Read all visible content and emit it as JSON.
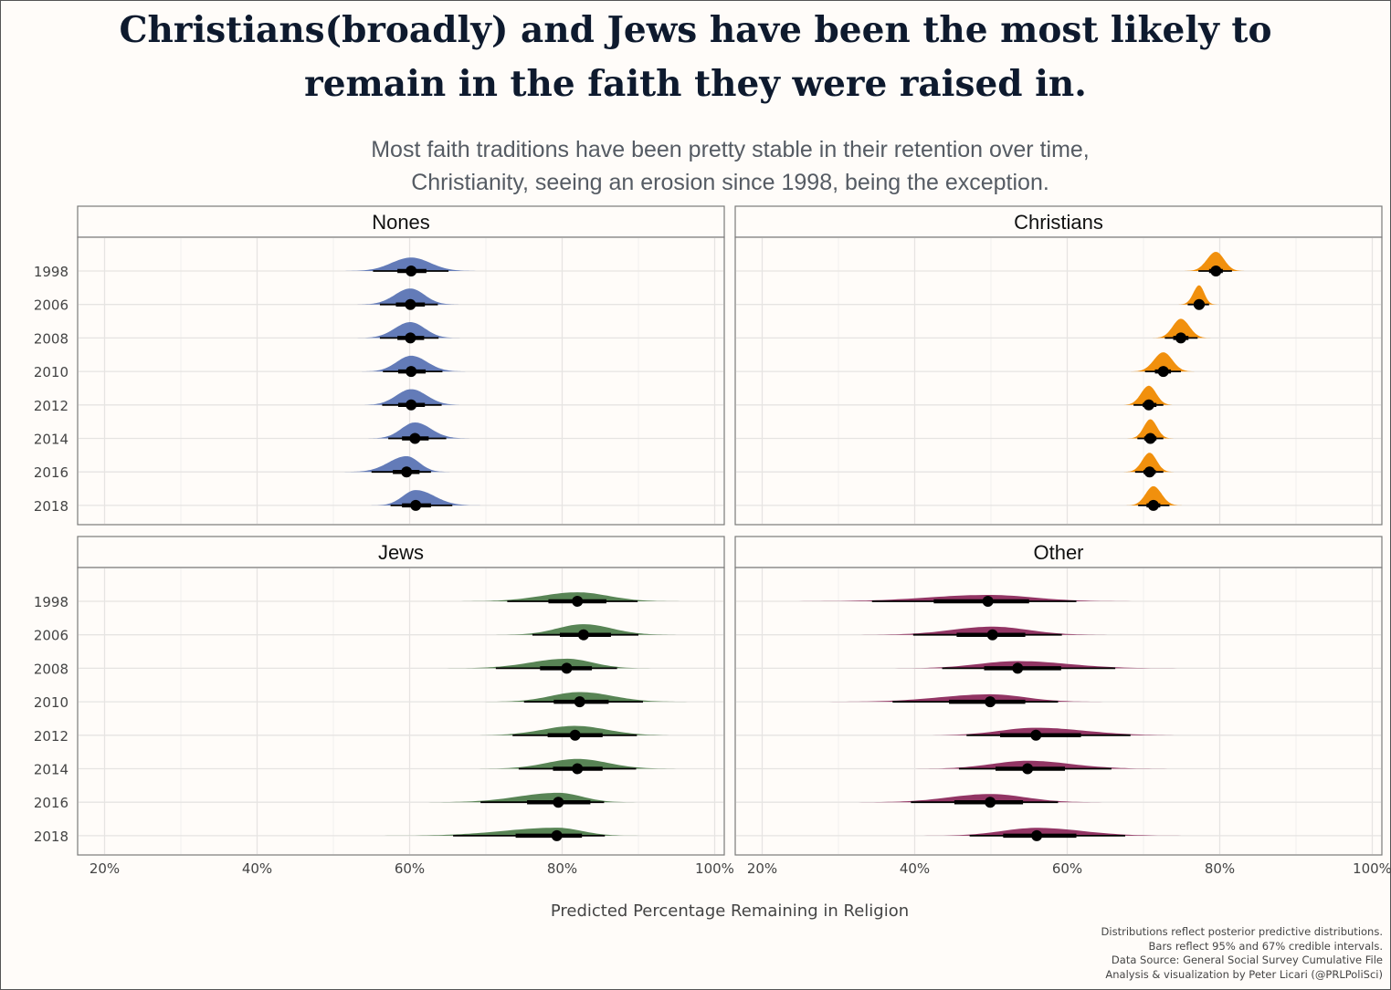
{
  "title_lines": [
    "Christians(broadly) and Jews have been the most likely to",
    "remain in the faith they were raised in."
  ],
  "subtitle_lines": [
    "Most faith traditions have been pretty stable in their retention over time,",
    "Christianity, seeing an erosion since 1998, being the exception."
  ],
  "caption_lines": [
    "Distributions reflect posterior predictive distributions.",
    "Bars reflect 95% and 67% credible intervals.",
    "Data Source: General Social Survey Cumulative File",
    "Analysis & visualization by Peter Licari (@PRLPoliSci)"
  ],
  "colors": {
    "Nones": "#5b74b4",
    "Christians": "#f08a00",
    "Jews": "#4f7d4c",
    "Other": "#8c2a5c"
  },
  "chart_data": {
    "type": "halfeye",
    "xlabel": "Predicted Percentage Remaining in Religion",
    "ylabel": "",
    "xlim": [
      20,
      100
    ],
    "x_ticks": [
      20,
      40,
      60,
      80,
      100
    ],
    "x_tick_labels": [
      "20%",
      "40%",
      "60%",
      "80%",
      "100%"
    ],
    "grid": true,
    "legend": "none",
    "categories": [
      "1998",
      "2006",
      "2008",
      "2010",
      "2012",
      "2014",
      "2016",
      "2018"
    ],
    "series": [
      {
        "name": "Nones",
        "points": [
          {
            "year": "1998",
            "median": 60.2,
            "ci67": [
              58.4,
              62.2
            ],
            "ci95": [
              55.2,
              65.1
            ]
          },
          {
            "year": "2006",
            "median": 60.1,
            "ci67": [
              58.2,
              62.0
            ],
            "ci95": [
              56.1,
              63.7
            ]
          },
          {
            "year": "2008",
            "median": 60.1,
            "ci67": [
              58.4,
              61.9
            ],
            "ci95": [
              56.1,
              63.8
            ]
          },
          {
            "year": "2010",
            "median": 60.2,
            "ci67": [
              58.5,
              62.1
            ],
            "ci95": [
              56.5,
              64.3
            ]
          },
          {
            "year": "2012",
            "median": 60.2,
            "ci67": [
              58.5,
              62.0
            ],
            "ci95": [
              56.4,
              64.2
            ]
          },
          {
            "year": "2014",
            "median": 60.7,
            "ci67": [
              59.0,
              62.5
            ],
            "ci95": [
              57.2,
              64.8
            ]
          },
          {
            "year": "2016",
            "median": 59.6,
            "ci67": [
              57.8,
              61.3
            ],
            "ci95": [
              55.0,
              62.8
            ]
          },
          {
            "year": "2018",
            "median": 60.8,
            "ci67": [
              59.0,
              62.8
            ],
            "ci95": [
              57.5,
              65.6
            ]
          }
        ]
      },
      {
        "name": "Christians",
        "points": [
          {
            "year": "1998",
            "median": 79.5,
            "ci67": [
              78.6,
              80.4
            ],
            "ci95": [
              77.2,
              81.6
            ]
          },
          {
            "year": "2006",
            "median": 77.3,
            "ci67": [
              76.6,
              78.0
            ],
            "ci95": [
              75.8,
              78.6
            ]
          },
          {
            "year": "2008",
            "median": 74.9,
            "ci67": [
              73.9,
              75.9
            ],
            "ci95": [
              72.8,
              77.1
            ]
          },
          {
            "year": "2010",
            "median": 72.6,
            "ci67": [
              71.5,
              73.6
            ],
            "ci95": [
              70.2,
              74.9
            ]
          },
          {
            "year": "2012",
            "median": 70.7,
            "ci67": [
              69.9,
              71.7
            ],
            "ci95": [
              68.7,
              72.6
            ]
          },
          {
            "year": "2014",
            "median": 70.9,
            "ci67": [
              70.1,
              71.7
            ],
            "ci95": [
              69.2,
              72.6
            ]
          },
          {
            "year": "2016",
            "median": 70.8,
            "ci67": [
              70.0,
              71.6
            ],
            "ci95": [
              68.9,
              72.6
            ]
          },
          {
            "year": "2018",
            "median": 71.3,
            "ci67": [
              70.4,
              72.2
            ],
            "ci95": [
              69.3,
              73.4
            ]
          }
        ]
      },
      {
        "name": "Jews",
        "points": [
          {
            "year": "1998",
            "median": 82.0,
            "ci67": [
              78.2,
              85.8
            ],
            "ci95": [
              72.8,
              89.9
            ]
          },
          {
            "year": "2006",
            "median": 82.8,
            "ci67": [
              79.7,
              86.4
            ],
            "ci95": [
              76.1,
              90.0
            ]
          },
          {
            "year": "2008",
            "median": 80.6,
            "ci67": [
              77.1,
              83.9
            ],
            "ci95": [
              71.3,
              87.2
            ]
          },
          {
            "year": "2010",
            "median": 82.3,
            "ci67": [
              78.9,
              86.1
            ],
            "ci95": [
              75.0,
              90.6
            ]
          },
          {
            "year": "2012",
            "median": 81.7,
            "ci67": [
              78.1,
              85.3
            ],
            "ci95": [
              73.5,
              89.8
            ]
          },
          {
            "year": "2014",
            "median": 82.0,
            "ci67": [
              78.8,
              85.3
            ],
            "ci95": [
              74.3,
              89.7
            ]
          },
          {
            "year": "2016",
            "median": 79.5,
            "ci67": [
              75.4,
              83.7
            ],
            "ci95": [
              69.3,
              85.5
            ]
          },
          {
            "year": "2018",
            "median": 79.3,
            "ci67": [
              73.9,
              82.6
            ],
            "ci95": [
              65.7,
              85.6
            ]
          }
        ]
      },
      {
        "name": "Other",
        "points": [
          {
            "year": "1998",
            "median": 49.6,
            "ci67": [
              42.5,
              55.0
            ],
            "ci95": [
              34.4,
              61.2
            ]
          },
          {
            "year": "2006",
            "median": 50.2,
            "ci67": [
              45.5,
              54.5
            ],
            "ci95": [
              39.8,
              59.3
            ]
          },
          {
            "year": "2008",
            "median": 53.5,
            "ci67": [
              49.1,
              59.2
            ],
            "ci95": [
              43.6,
              66.3
            ]
          },
          {
            "year": "2010",
            "median": 49.9,
            "ci67": [
              44.5,
              54.5
            ],
            "ci95": [
              37.1,
              58.8
            ]
          },
          {
            "year": "2012",
            "median": 55.9,
            "ci67": [
              51.2,
              61.8
            ],
            "ci95": [
              46.8,
              68.3
            ]
          },
          {
            "year": "2014",
            "median": 54.8,
            "ci67": [
              50.6,
              59.7
            ],
            "ci95": [
              45.8,
              65.8
            ]
          },
          {
            "year": "2016",
            "median": 49.9,
            "ci67": [
              45.2,
              54.2
            ],
            "ci95": [
              39.5,
              58.8
            ]
          },
          {
            "year": "2018",
            "median": 56.0,
            "ci67": [
              51.6,
              61.2
            ],
            "ci95": [
              47.2,
              67.6
            ]
          }
        ]
      }
    ]
  }
}
